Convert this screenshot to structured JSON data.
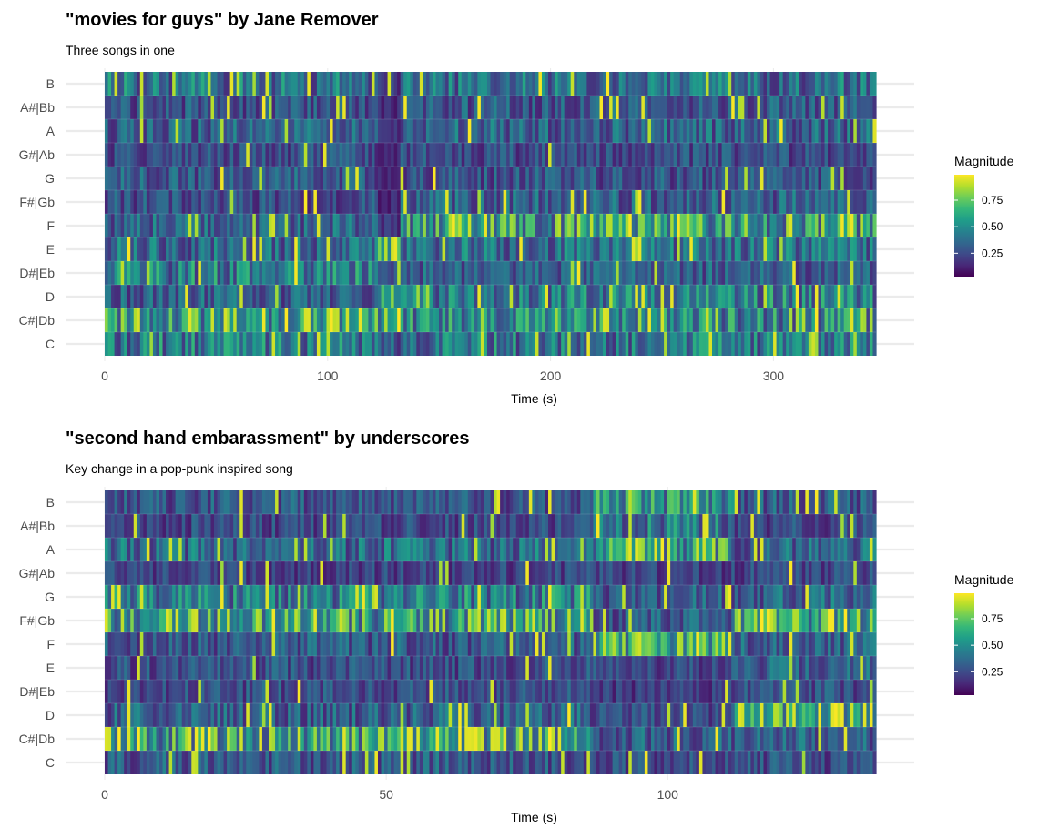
{
  "chart_data": [
    {
      "type": "heatmap",
      "title": "\"movies for guys\" by Jane Remover",
      "subtitle": "Three songs in one",
      "xlabel": "Time (s)",
      "ylabel": "",
      "x_ticks": [
        0,
        100,
        200,
        300
      ],
      "xlim": [
        0,
        346
      ],
      "y_categories": [
        "C",
        "C#|Db",
        "D",
        "D#|Eb",
        "E",
        "F",
        "F#|Gb",
        "G",
        "G#|Ab",
        "A",
        "A#|Bb",
        "B"
      ],
      "legend": {
        "title": "Magnitude",
        "ticks": [
          "0.25",
          "0.50",
          "0.75"
        ],
        "position": "right",
        "colormap": "viridis"
      },
      "grid": true,
      "segments": [
        {
          "from": 0,
          "to": 123,
          "profile": [
            0.4,
            0.62,
            0.3,
            0.42,
            0.35,
            0.32,
            0.25,
            0.28,
            0.24,
            0.3,
            0.26,
            0.38
          ]
        },
        {
          "from": 123,
          "to": 133,
          "profile": [
            0.3,
            0.7,
            0.58,
            0.2,
            0.62,
            0.18,
            0.12,
            0.1,
            0.12,
            0.12,
            0.12,
            0.15
          ]
        },
        {
          "from": 133,
          "to": 346,
          "profile": [
            0.4,
            0.45,
            0.42,
            0.3,
            0.36,
            0.55,
            0.3,
            0.26,
            0.24,
            0.32,
            0.28,
            0.36
          ]
        }
      ]
    },
    {
      "type": "heatmap",
      "title": "\"second hand embarassment\" by underscores",
      "subtitle": "Key change in a pop-punk inspired song",
      "xlabel": "Time (s)",
      "ylabel": "",
      "x_ticks": [
        0,
        50,
        100
      ],
      "xlim": [
        0,
        137
      ],
      "y_categories": [
        "C",
        "C#|Db",
        "D",
        "D#|Eb",
        "E",
        "F",
        "F#|Gb",
        "G",
        "G#|Ab",
        "A",
        "A#|Bb",
        "B"
      ],
      "legend": {
        "title": "Magnitude",
        "ticks": [
          "0.25",
          "0.50",
          "0.75"
        ],
        "position": "right",
        "colormap": "viridis"
      },
      "grid": true,
      "segments": [
        {
          "from": 0,
          "to": 87,
          "profile": [
            0.28,
            0.62,
            0.3,
            0.24,
            0.24,
            0.28,
            0.58,
            0.42,
            0.2,
            0.34,
            0.22,
            0.26
          ]
        },
        {
          "from": 87,
          "to": 112,
          "profile": [
            0.22,
            0.3,
            0.22,
            0.18,
            0.22,
            0.55,
            0.28,
            0.3,
            0.2,
            0.55,
            0.4,
            0.48
          ]
        },
        {
          "from": 112,
          "to": 137,
          "profile": [
            0.24,
            0.3,
            0.6,
            0.24,
            0.3,
            0.3,
            0.62,
            0.32,
            0.22,
            0.32,
            0.22,
            0.28
          ]
        }
      ]
    }
  ]
}
